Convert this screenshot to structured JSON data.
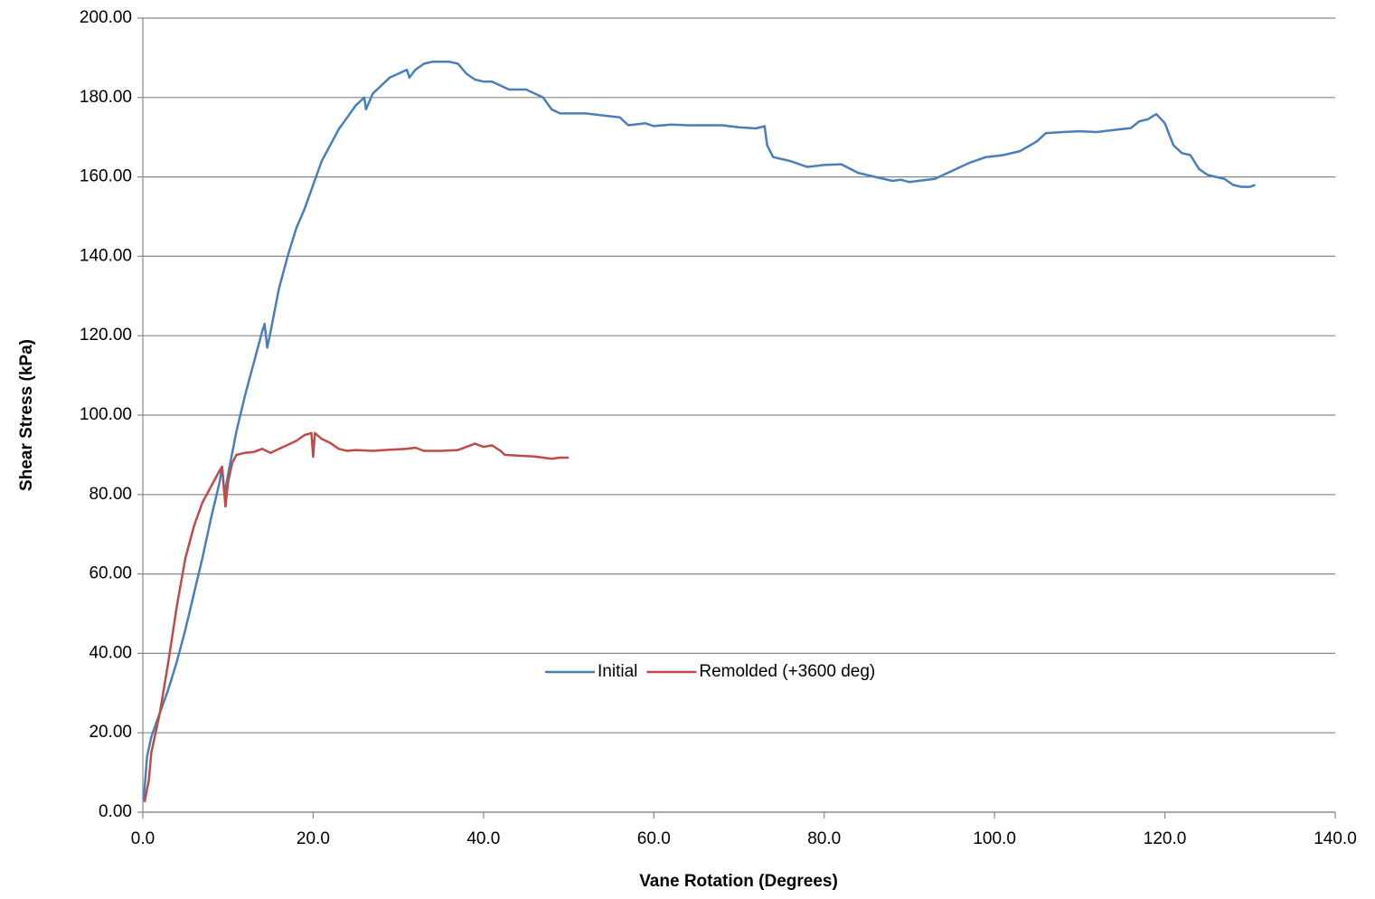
{
  "chart_data": {
    "type": "line",
    "x_label": "Vane Rotation (Degrees)",
    "y_label": "Shear Stress (kPa)",
    "xlim": [
      0,
      140
    ],
    "ylim": [
      0,
      200
    ],
    "xticks": [
      {
        "value": 0,
        "label": "0.0"
      },
      {
        "value": 20,
        "label": "20.0"
      },
      {
        "value": 40,
        "label": "40.0"
      },
      {
        "value": 60,
        "label": "60.0"
      },
      {
        "value": 80,
        "label": "80.0"
      },
      {
        "value": 100,
        "label": "100.0"
      },
      {
        "value": 120,
        "label": "120.0"
      },
      {
        "value": 140,
        "label": "140.0"
      }
    ],
    "yticks": [
      {
        "value": 0,
        "label": "0.00"
      },
      {
        "value": 20,
        "label": "20.00"
      },
      {
        "value": 40,
        "label": "40.00"
      },
      {
        "value": 60,
        "label": "60.00"
      },
      {
        "value": 80,
        "label": "80.00"
      },
      {
        "value": 100,
        "label": "100.00"
      },
      {
        "value": 120,
        "label": "120.00"
      },
      {
        "value": 140,
        "label": "140.00"
      },
      {
        "value": 160,
        "label": "160.00"
      },
      {
        "value": 180,
        "label": "180.00"
      },
      {
        "value": 200,
        "label": "200.00"
      }
    ],
    "grid": true,
    "legend": "center",
    "series": [
      {
        "name": "Initial",
        "color": "#4a7ebb",
        "x": [
          0.1,
          0.5,
          1,
          2,
          3,
          4,
          5,
          6,
          7,
          8,
          9,
          9.3,
          9.6,
          10,
          11,
          12,
          13,
          14,
          14.3,
          14.6,
          15,
          16,
          17,
          18,
          19,
          20,
          21,
          22,
          23,
          24,
          25,
          26,
          26.2,
          27,
          28,
          29,
          30,
          31,
          31.3,
          32,
          33,
          34,
          35,
          36,
          37,
          38,
          39,
          40,
          41,
          42,
          43,
          44,
          45,
          46,
          47,
          48,
          49,
          50,
          52,
          54,
          56,
          57,
          59,
          60,
          62,
          64,
          66,
          68,
          70,
          72,
          73,
          73.3,
          74,
          76,
          78,
          80,
          82,
          84,
          86,
          88,
          89,
          90,
          91,
          93,
          95,
          97,
          99,
          101,
          103,
          105,
          106,
          108,
          110,
          112,
          114,
          116,
          117,
          118,
          119,
          120,
          121,
          122,
          123,
          124,
          125,
          126,
          127,
          128,
          129,
          130,
          130.6
        ],
        "values": [
          3,
          14,
          19,
          25,
          31,
          38,
          46,
          55,
          64,
          74,
          83,
          87,
          80,
          85,
          96,
          105,
          113,
          121,
          123,
          117,
          121,
          132,
          140,
          147,
          152,
          158,
          164,
          168,
          172,
          175,
          178,
          180,
          177,
          181,
          183,
          185,
          186,
          187,
          185,
          187,
          188.5,
          189,
          189,
          189,
          188.5,
          186,
          184.5,
          184,
          184,
          183,
          182,
          182,
          182,
          181,
          180,
          177,
          176,
          176,
          176,
          175.5,
          175,
          173,
          173.5,
          172.8,
          173.2,
          173,
          173,
          173,
          172.5,
          172.2,
          172.8,
          168,
          165,
          164,
          162.5,
          163,
          163.2,
          161,
          160,
          159,
          159.3,
          158.7,
          159,
          159.5,
          161.5,
          163.5,
          165,
          165.5,
          166.5,
          169,
          171,
          171.3,
          171.5,
          171.3,
          171.8,
          172.3,
          174,
          174.5,
          175.8,
          173.5,
          168,
          166,
          165.5,
          162,
          160.5,
          160,
          159.5,
          158,
          157.5,
          157.5,
          158
        ]
      },
      {
        "name": "Remolded (+3600 deg)",
        "color": "#be4b48",
        "x": [
          0.2,
          0.7,
          1,
          2,
          3,
          4,
          5,
          6,
          7,
          8,
          9,
          9.3,
          9.7,
          10,
          10.5,
          11,
          12,
          13,
          14,
          15,
          16,
          17,
          18,
          19,
          19.8,
          20,
          20.2,
          21,
          22,
          23,
          24,
          25,
          27,
          29,
          31,
          32,
          33,
          35,
          37,
          38,
          39,
          40,
          41,
          42,
          42.5,
          44,
          46,
          48,
          49,
          50
        ],
        "values": [
          2.5,
          8,
          15,
          25,
          38,
          52,
          64,
          72,
          78,
          82,
          86,
          87,
          77,
          83,
          88,
          90,
          90.5,
          90.7,
          91.5,
          90.5,
          91.5,
          92.5,
          93.5,
          95,
          95.5,
          89.5,
          95.5,
          94,
          93,
          91.5,
          91,
          91.2,
          91,
          91.3,
          91.5,
          91.8,
          91,
          91,
          91.2,
          92,
          92.8,
          92,
          92.4,
          91,
          90,
          89.8,
          89.6,
          89,
          89.3,
          89.3
        ]
      }
    ]
  }
}
